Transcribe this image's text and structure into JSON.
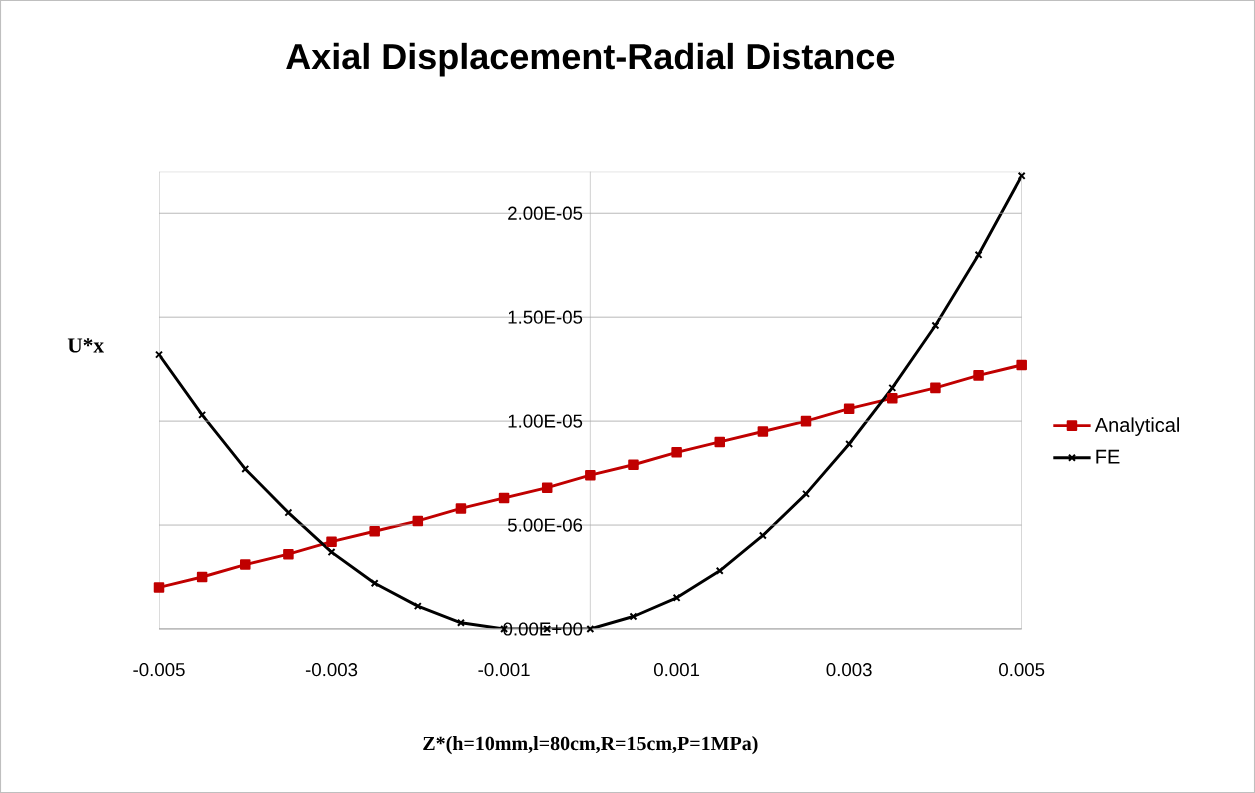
{
  "chart_data": {
    "type": "line",
    "title": "Axial Displacement-Radial Distance",
    "xlabel": "Z*(h=10mm,l=80cm,R=15cm,P=1MPa)",
    "ylabel": "U*x",
    "x": [
      -0.005,
      -0.0045,
      -0.004,
      -0.0035,
      -0.003,
      -0.0025,
      -0.002,
      -0.0015,
      -0.001,
      -0.0005,
      0,
      0.0005,
      0.001,
      0.0015,
      0.002,
      0.0025,
      0.003,
      0.0035,
      0.004,
      0.0045,
      0.005
    ],
    "series": [
      {
        "name": "Analytical",
        "color": "#c00000",
        "marker": "square",
        "values": [
          2e-06,
          2.5e-06,
          3.1e-06,
          3.6e-06,
          4.2e-06,
          4.7e-06,
          5.2e-06,
          5.8e-06,
          6.3e-06,
          6.8e-06,
          7.4e-06,
          7.9e-06,
          8.5e-06,
          9e-06,
          9.5e-06,
          1e-05,
          1.06e-05,
          1.11e-05,
          1.16e-05,
          1.22e-05,
          1.27e-05
        ]
      },
      {
        "name": "FE",
        "color": "#000000",
        "marker": "cross",
        "values": [
          1.32e-05,
          1.03e-05,
          7.7e-06,
          5.6e-06,
          3.7e-06,
          2.2e-06,
          1.1e-06,
          3e-07,
          0,
          0,
          0,
          6e-07,
          1.5e-06,
          2.8e-06,
          4.5e-06,
          6.5e-06,
          8.9e-06,
          1.16e-05,
          1.46e-05,
          1.8e-05,
          2.18e-05
        ]
      }
    ],
    "xlim": [
      -0.005,
      0.005
    ],
    "xticks": [
      -0.005,
      -0.003,
      -0.001,
      0.001,
      0.003,
      0.005
    ],
    "ylim": [
      0,
      2.2e-05
    ],
    "yticks": [
      {
        "value": 0,
        "label": "0.00E+00"
      },
      {
        "value": 5e-06,
        "label": "5.00E-06"
      },
      {
        "value": 1e-05,
        "label": "1.00E-05"
      },
      {
        "value": 1.5e-05,
        "label": "1.50E-05"
      },
      {
        "value": 2e-05,
        "label": "2.00E-05"
      }
    ],
    "grid": "y",
    "legend": "right"
  }
}
